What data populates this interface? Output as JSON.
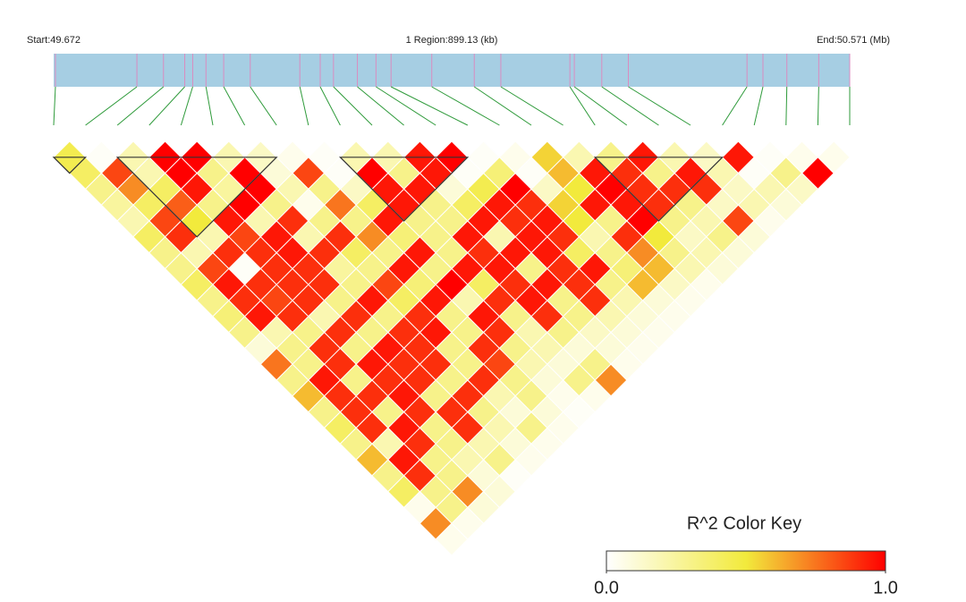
{
  "chart_data": {
    "type": "heatmap",
    "start_label": "Start:49.672",
    "region_label": "1 Region:899.13 (kb)",
    "end_label": "End:50.571 (Mb)",
    "xlim": [
      49.672,
      50.571
    ],
    "positions": [
      49.674,
      49.766,
      49.796,
      49.82,
      49.829,
      49.844,
      49.864,
      49.894,
      49.95,
      49.973,
      49.988,
      50.015,
      50.036,
      50.053,
      50.099,
      50.147,
      50.177,
      50.255,
      50.26,
      50.291,
      50.321,
      50.455,
      50.473,
      50.5,
      50.536,
      50.571
    ],
    "bar_color": "#a6cee3",
    "snp_line_color": "#d98cc0",
    "connector_color": "#2e9a3a",
    "r2": [
      [
        0.45,
        0.02,
        0.2,
        1,
        1,
        0.2,
        0.15,
        0.05,
        0.02,
        0.2,
        0.2,
        0.95,
        1,
        0.02,
        0.05,
        0.55,
        0.2,
        0.3,
        0.95,
        0.2,
        0.15,
        0.95,
        0.02,
        0.05,
        0.05
      ],
      [
        0.4,
        0.85,
        0.2,
        1,
        0.3,
        1,
        0.1,
        0.85,
        0.02,
        1,
        0.3,
        0.95,
        0.02,
        0.35,
        0.02,
        0.6,
        0.95,
        0.9,
        0.3,
        0.95,
        0.2,
        0.02,
        0.3,
        1
      ],
      [
        0.3,
        0.7,
        0.4,
        0.95,
        0.25,
        1,
        0.2,
        0.3,
        0.15,
        0.95,
        0.95,
        0.1,
        0.45,
        1,
        0.15,
        0.5,
        1,
        0.9,
        0.9,
        0.9,
        0.15,
        0.2,
        0.15
      ],
      [
        0.25,
        0.4,
        0.8,
        0.3,
        1,
        0.3,
        0.05,
        0.75,
        0.4,
        0.95,
        0.3,
        0.4,
        0.95,
        0.9,
        0.55,
        0.95,
        0.95,
        0.9,
        0.3,
        0.15,
        0.2,
        0.1
      ],
      [
        0.2,
        0.85,
        0.5,
        0.95,
        0.2,
        0.9,
        0.3,
        0.3,
        0.95,
        0.3,
        0.3,
        0.95,
        0.9,
        0.95,
        0.5,
        0.3,
        1,
        0.3,
        0.2,
        0.85,
        0.05
      ],
      [
        0.4,
        0.9,
        0.2,
        0.85,
        0.95,
        0.2,
        0.9,
        0.7,
        0.35,
        0.3,
        0.95,
        0.2,
        0.95,
        0.9,
        0.2,
        0.9,
        0.5,
        0.15,
        0.3,
        0.1
      ],
      [
        0.3,
        0.2,
        0.9,
        0.9,
        0.95,
        0.9,
        0.4,
        0.3,
        0.95,
        0.3,
        0.9,
        0.95,
        0.95,
        0.4,
        0.3,
        0.7,
        0.3,
        0.2,
        0.1
      ],
      [
        0.3,
        0.85,
        0.02,
        0.9,
        0.9,
        0.25,
        0.3,
        0.95,
        0.3,
        0.95,
        0.95,
        0.3,
        0.9,
        0.95,
        0.35,
        0.6,
        0.2,
        0.1
      ],
      [
        0.4,
        0.95,
        0.9,
        0.9,
        0.9,
        0.3,
        0.85,
        0.35,
        1,
        0.4,
        0.9,
        0.95,
        0.9,
        0.3,
        0.6,
        0.15,
        0.05
      ],
      [
        0.3,
        0.9,
        0.85,
        0.9,
        0.3,
        0.95,
        0.4,
        0.95,
        0.2,
        0.9,
        0.95,
        0.3,
        0.9,
        0.2,
        0.1,
        0.05
      ],
      [
        0.35,
        0.95,
        0.9,
        0.2,
        0.9,
        0.3,
        0.9,
        0.3,
        0.95,
        0.3,
        0.9,
        0.3,
        0.2,
        0.1,
        0.05
      ],
      [
        0.3,
        0.2,
        0.3,
        0.9,
        0.3,
        0.9,
        0.95,
        0.3,
        0.9,
        0.2,
        0.3,
        0.15,
        0.1,
        0.05
      ],
      [
        0.1,
        0.3,
        0.9,
        0.3,
        0.95,
        0.9,
        0.3,
        0.9,
        0.3,
        0.2,
        0.1,
        0.1,
        0.05
      ],
      [
        0.75,
        0.3,
        0.9,
        0.95,
        0.9,
        0.9,
        0.3,
        0.85,
        0.2,
        0.1,
        0.3,
        0.05
      ],
      [
        0.3,
        0.95,
        0.3,
        0.9,
        0.9,
        0.3,
        0.9,
        0.3,
        0.1,
        0.3,
        0.7
      ],
      [
        0.6,
        0.9,
        0.9,
        0.95,
        0.3,
        0.9,
        0.2,
        0.3,
        0.05,
        0.05
      ],
      [
        0.3,
        0.9,
        0.3,
        0.9,
        0.9,
        0.3,
        0.1,
        0.1,
        0.02
      ],
      [
        0.4,
        0.9,
        0.95,
        0.3,
        0.9,
        0.2,
        0.3,
        0.05
      ],
      [
        0.3,
        0.2,
        0.9,
        0.3,
        0.2,
        0.1,
        0.05
      ],
      [
        0.6,
        0.95,
        0.3,
        0.2,
        0.3,
        0.05
      ],
      [
        0.3,
        0.9,
        0.3,
        0.1,
        0.02
      ],
      [
        0.4,
        0.3,
        0.7,
        0.1
      ],
      [
        0.05,
        0.3,
        0.1
      ],
      [
        0.7,
        0.05
      ],
      [
        0.05
      ]
    ],
    "blocks": [
      [
        0,
        1
      ],
      [
        2,
        7
      ],
      [
        9,
        13
      ],
      [
        17,
        21
      ]
    ],
    "colors": [
      "#ffffff",
      "#f2ea3c",
      "#ff0000"
    ],
    "color_key": {
      "title": "R^2 Color Key",
      "ticks": [
        {
          "value": 0,
          "label": "0.0"
        },
        {
          "value": 1,
          "label": "1.0"
        }
      ]
    }
  }
}
